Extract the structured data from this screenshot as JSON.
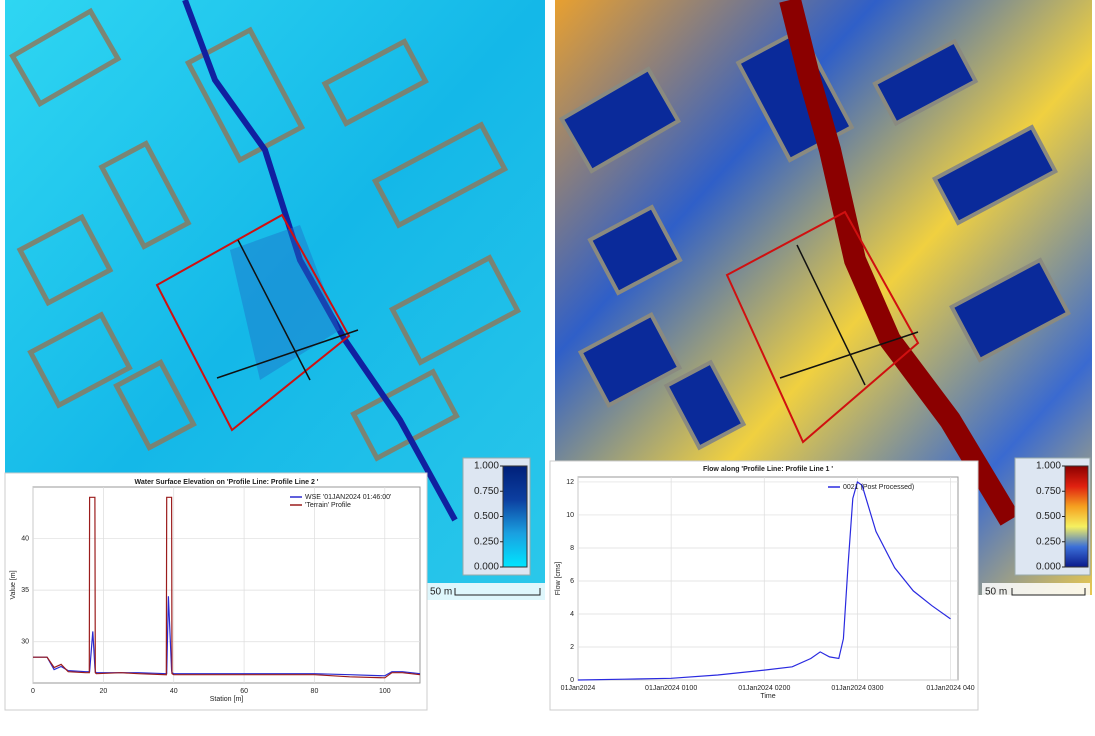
{
  "chart_data": [
    {
      "type": "line",
      "title": "Water Surface Elevation on 'Profile Line: Profile Line 2 '",
      "x_label": "Station [m]",
      "y_label": "Value [m]",
      "x": [
        0,
        4,
        6,
        8,
        10,
        15,
        16,
        16.1,
        17,
        17.6,
        17.7,
        18,
        25,
        30,
        37.9,
        38,
        38.5,
        39.4,
        39.5,
        40,
        50,
        60,
        70,
        80,
        90,
        100,
        102,
        105,
        110
      ],
      "series": [
        {
          "name": "WSE '01JAN2024 01:46:00'",
          "color": "#2b2bd0",
          "values": [
            28.5,
            28.5,
            27.3,
            27.6,
            27.2,
            27.1,
            27.1,
            27.1,
            31,
            27.5,
            27.1,
            27,
            27,
            27,
            26.9,
            26.9,
            34.4,
            27.2,
            27,
            26.9,
            26.9,
            26.9,
            26.9,
            26.9,
            26.8,
            26.7,
            27.1,
            27.1,
            26.9
          ]
        },
        {
          "name": "'Terrain' Profile",
          "color": "#9b1c1c",
          "values": [
            28.5,
            28.5,
            27.5,
            27.8,
            27.1,
            27,
            27,
            44,
            44,
            44,
            27,
            26.9,
            27,
            26.9,
            26.8,
            44,
            44,
            44,
            26.9,
            26.8,
            26.8,
            26.8,
            26.8,
            26.8,
            26.6,
            26.5,
            27,
            27,
            26.8
          ]
        }
      ],
      "xlim": [
        0,
        110
      ],
      "xticks": [
        0,
        20,
        40,
        60,
        80,
        100
      ],
      "ylim": [
        26,
        45
      ],
      "yticks": [
        30,
        35,
        40
      ],
      "grid": true,
      "legend": "top-right"
    },
    {
      "type": "line",
      "title": "Flow along 'Profile Line: Profile Line 1 '",
      "x_label": "Time",
      "y_label": "Flow [cms]",
      "x": [
        0,
        0.5,
        1,
        1.5,
        2,
        2.3,
        2.5,
        2.6,
        2.7,
        2.8,
        2.85,
        2.9,
        2.95,
        3.0,
        3.05,
        3.2,
        3.4,
        3.6,
        3.8,
        4.0
      ],
      "series": [
        {
          "name": "0021 (Post Processed)",
          "color": "#2a2ae0",
          "values": [
            0,
            0.05,
            0.1,
            0.3,
            0.6,
            0.8,
            1.3,
            1.7,
            1.4,
            1.3,
            2.5,
            7,
            11,
            12,
            11.8,
            9,
            6.8,
            5.4,
            4.5,
            3.7
          ]
        }
      ],
      "xlim": [
        0,
        4.08
      ],
      "xticks": [
        {
          "value": 0,
          "label": "01Jan2024"
        },
        {
          "value": 1,
          "label": "01Jan2024 0100"
        },
        {
          "value": 2,
          "label": "01Jan2024 0200"
        },
        {
          "value": 3,
          "label": "01Jan2024 0300"
        },
        {
          "value": 4,
          "label": "01Jan2024 040"
        }
      ],
      "ylim": [
        0,
        12.3
      ],
      "yticks": [
        0,
        2,
        4,
        6,
        8,
        10,
        12
      ],
      "grid": true,
      "legend": "top-right"
    }
  ],
  "maps": [
    {
      "scale_label": "50 m",
      "colorbar": {
        "colors": [
          "#00e5ff",
          "#1aa0e0",
          "#0c3fa0",
          "#00207a"
        ],
        "ticks": [
          {
            "value": 1,
            "label": "1.000"
          },
          {
            "value": 0.75,
            "label": "0.750"
          },
          {
            "value": 0.5,
            "label": "0.500"
          },
          {
            "value": 0.25,
            "label": "0.250"
          },
          {
            "value": 0,
            "label": "0.000"
          }
        ]
      }
    },
    {
      "scale_label": "50 m",
      "colorbar": {
        "colors": [
          "#0a1a8c",
          "#3b6fd8",
          "#f5f060",
          "#f5a020",
          "#e02010",
          "#8b0000"
        ],
        "ticks": [
          {
            "value": 1,
            "label": "1.000"
          },
          {
            "value": 0.75,
            "label": "0.750"
          },
          {
            "value": 0.5,
            "label": "0.500"
          },
          {
            "value": 0.25,
            "label": "0.250"
          },
          {
            "value": 0,
            "label": "0.000"
          }
        ]
      }
    }
  ]
}
